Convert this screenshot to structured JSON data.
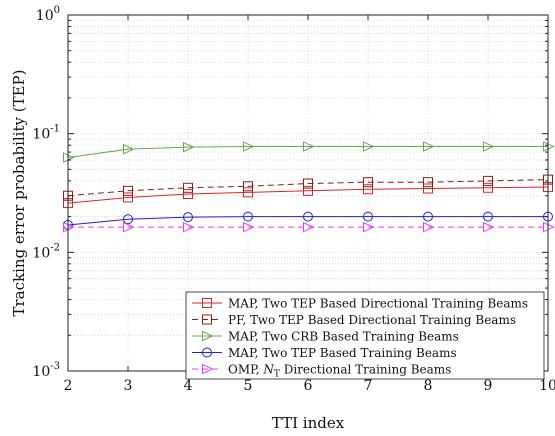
{
  "chart_data": {
    "type": "line",
    "xlabel": "TTI index",
    "ylabel": "Tracking error probability (TEP)",
    "x": [
      2,
      3,
      4,
      5,
      6,
      7,
      8,
      9,
      10
    ],
    "xlim": [
      2,
      10
    ],
    "ylim": [
      0.001,
      1
    ],
    "yscale": "log",
    "grid": true,
    "legend_position": "bottom-right",
    "x_ticks": [
      "2",
      "3",
      "4",
      "5",
      "6",
      "7",
      "8",
      "9",
      "10"
    ],
    "y_ticks": [
      {
        "base": "10",
        "exp": "-3",
        "value": 0.001
      },
      {
        "base": "10",
        "exp": "-2",
        "value": 0.01
      },
      {
        "base": "10",
        "exp": "-1",
        "value": 0.1
      },
      {
        "base": "10",
        "exp": "0",
        "value": 1
      }
    ],
    "series": [
      {
        "name": "MAP, Two TEP Based Directional Training Beams",
        "color": "#d62728",
        "dash": "solid",
        "marker": "square",
        "values": [
          0.026,
          0.029,
          0.031,
          0.032,
          0.033,
          0.034,
          0.0345,
          0.035,
          0.0355
        ]
      },
      {
        "name": "PF,     Two TEP Based Directional Training Beams",
        "color": "#8b1a1a",
        "dash": "dashed",
        "marker": "square",
        "values": [
          0.03,
          0.033,
          0.035,
          0.036,
          0.038,
          0.039,
          0.039,
          0.04,
          0.041
        ]
      },
      {
        "name": "MAP, Two CRB Based Training Beams",
        "color": "#6aa84f",
        "dash": "solid",
        "marker": "triangle-right",
        "values": [
          0.063,
          0.074,
          0.077,
          0.078,
          0.078,
          0.078,
          0.078,
          0.078,
          0.078
        ]
      },
      {
        "name": "MAP, Two TEP Based Training Beams",
        "color": "#1f1fd6",
        "dash": "solid",
        "marker": "circle",
        "values": [
          0.017,
          0.019,
          0.0198,
          0.02,
          0.02,
          0.02,
          0.02,
          0.02,
          0.02
        ]
      },
      {
        "name": "OMP, N_T Directional Training Beams",
        "legend_prefix": "OMP, ",
        "legend_symbol_main": "N",
        "legend_symbol_sub": "T",
        "legend_suffix": " Directional Training Beams",
        "color": "#e83de8",
        "dash": "dashed",
        "marker": "triangle-right",
        "values": [
          0.0163,
          0.0163,
          0.0163,
          0.0163,
          0.0163,
          0.0163,
          0.0163,
          0.0163,
          0.0163
        ]
      }
    ]
  }
}
